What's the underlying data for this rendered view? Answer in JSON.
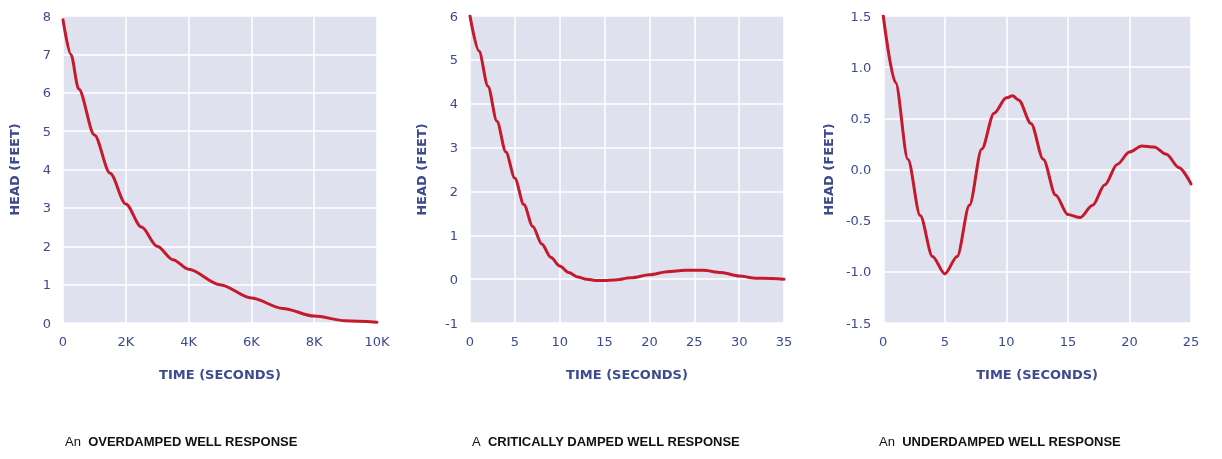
{
  "chart_data": [
    {
      "type": "line",
      "title": "An OVERDAMPED WELL RESPONSE",
      "xlabel": "TIME (SECONDS)",
      "ylabel": "HEAD (FEET)",
      "grid": true,
      "marker": "none",
      "line_style": "solid",
      "x": [
        0,
        250,
        500,
        1000,
        1500,
        2000,
        2500,
        3000,
        3500,
        4000,
        5000,
        6000,
        7000,
        8000,
        9000,
        10000
      ],
      "series": [
        {
          "color": "#c41a2c",
          "values": [
            7.9,
            7.0,
            6.1,
            4.9,
            3.9,
            3.1,
            2.5,
            2.0,
            1.65,
            1.4,
            1.0,
            0.65,
            0.38,
            0.18,
            0.06,
            0.02
          ]
        }
      ],
      "xlim": [
        0,
        10000
      ],
      "xticks": [
        0,
        {
          "value": 2000,
          "label": "2K"
        },
        {
          "value": 4000,
          "label": "4K"
        },
        {
          "value": 6000,
          "label": "6K"
        },
        {
          "value": 8000,
          "label": "8K"
        },
        {
          "value": 10000,
          "label": "10K"
        }
      ],
      "ylim": [
        0,
        8
      ],
      "yticks": [
        0,
        1,
        2,
        3,
        4,
        5,
        6,
        7,
        8
      ]
    },
    {
      "type": "line",
      "title": "A CRITICALLY DAMPED WELL RESPONSE",
      "xlabel": "TIME (SECONDS)",
      "ylabel": "HEAD (FEET)",
      "grid": true,
      "marker": "none",
      "line_style": "solid",
      "x": [
        0,
        1,
        2,
        3,
        4,
        5,
        6,
        7,
        8,
        9,
        10,
        11,
        12,
        13,
        14,
        15,
        16,
        18,
        20,
        22,
        24,
        26,
        28,
        30,
        32,
        35
      ],
      "series": [
        {
          "color": "#c41a2c",
          "values": [
            6,
            5.2,
            4.4,
            3.6,
            2.9,
            2.3,
            1.7,
            1.2,
            0.8,
            0.5,
            0.3,
            0.15,
            0.05,
            0.0,
            -0.03,
            -0.03,
            -0.02,
            0.03,
            0.1,
            0.17,
            0.2,
            0.2,
            0.15,
            0.07,
            0.02,
            0.0
          ]
        }
      ],
      "xlim": [
        0,
        35
      ],
      "xticks": [
        0,
        5,
        10,
        15,
        20,
        25,
        30,
        35
      ],
      "ylim": [
        -1,
        6
      ],
      "yticks": [
        -1,
        0,
        1,
        2,
        3,
        4,
        5,
        6
      ]
    },
    {
      "type": "line",
      "title": "An UNDERDAMPED WELL RESPONSE",
      "xlabel": "TIME (SECONDS)",
      "ylabel": "HEAD (FEET)",
      "grid": true,
      "marker": "none",
      "line_style": "solid",
      "x": [
        0,
        1,
        2,
        3,
        4,
        5,
        6,
        7,
        8,
        9,
        10,
        10.5,
        11,
        12,
        13,
        14,
        15,
        16,
        17,
        18,
        19,
        20,
        21,
        22,
        23,
        24,
        25
      ],
      "series": [
        {
          "color": "#c41a2c",
          "values": [
            1.5,
            0.85,
            0.1,
            -0.45,
            -0.85,
            -1.02,
            -0.85,
            -0.35,
            0.2,
            0.55,
            0.7,
            0.72,
            0.68,
            0.45,
            0.1,
            -0.25,
            -0.44,
            -0.47,
            -0.35,
            -0.15,
            0.05,
            0.17,
            0.23,
            0.22,
            0.15,
            0.02,
            -0.14
          ]
        }
      ],
      "xlim": [
        0,
        25
      ],
      "xticks": [
        0,
        5,
        10,
        15,
        20,
        25
      ],
      "ylim": [
        -1.5,
        1.5
      ],
      "yticks": [
        -1.5,
        {
          "value": -1,
          "label": "-1.0"
        },
        -0.5,
        {
          "value": 0,
          "label": "0.0"
        },
        0.5,
        {
          "value": 1,
          "label": "1.0"
        },
        1.5
      ]
    }
  ]
}
